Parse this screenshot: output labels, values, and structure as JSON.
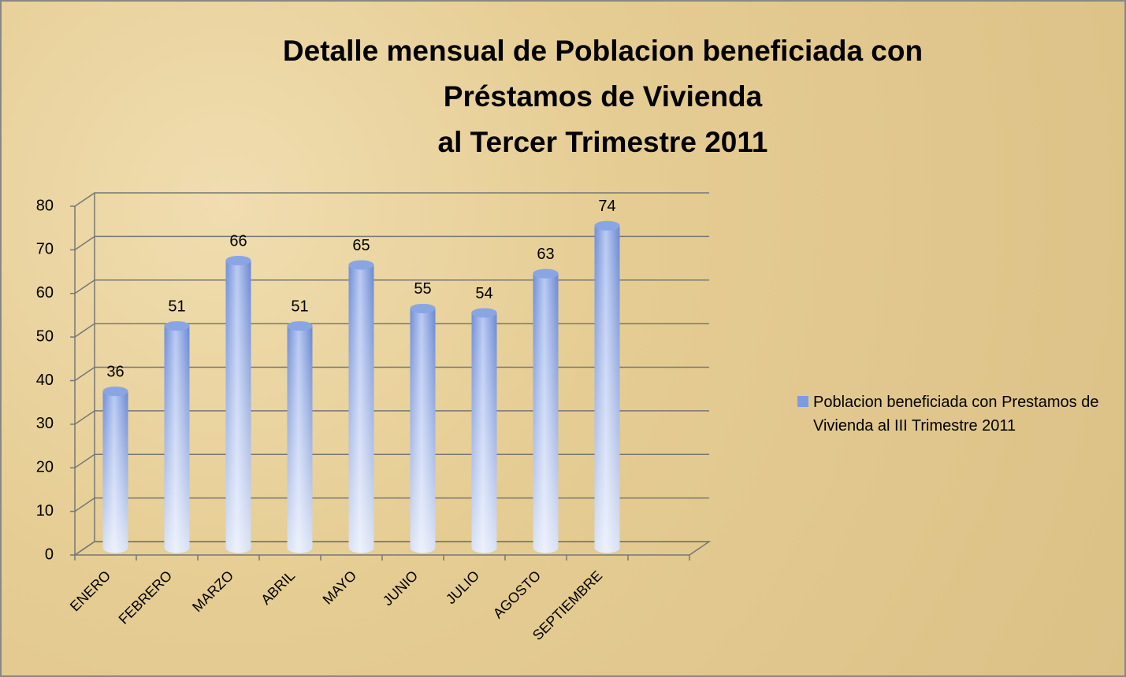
{
  "chart_data": {
    "type": "bar",
    "title": [
      "Detalle mensual de Poblacion beneficiada con",
      "Préstamos de Vivienda",
      "al Tercer  Trimestre 2011"
    ],
    "categories": [
      "ENERO",
      "FEBRERO",
      "MARZO",
      "ABRIL",
      "MAYO",
      "JUNIO",
      "JULIO",
      "AGOSTO",
      "SEPTIEMBRE"
    ],
    "series": [
      {
        "name": "Poblacion beneficiada con Prestamos de Vivienda al III Trimestre 2011",
        "color": "#7e9be0",
        "values": [
          36,
          51,
          66,
          51,
          65,
          55,
          54,
          63,
          74
        ]
      }
    ],
    "ylim": [
      0,
      80
    ],
    "yticks": [
      0,
      10,
      20,
      30,
      40,
      50,
      60,
      70,
      80
    ],
    "grid": true,
    "legend": "right"
  }
}
